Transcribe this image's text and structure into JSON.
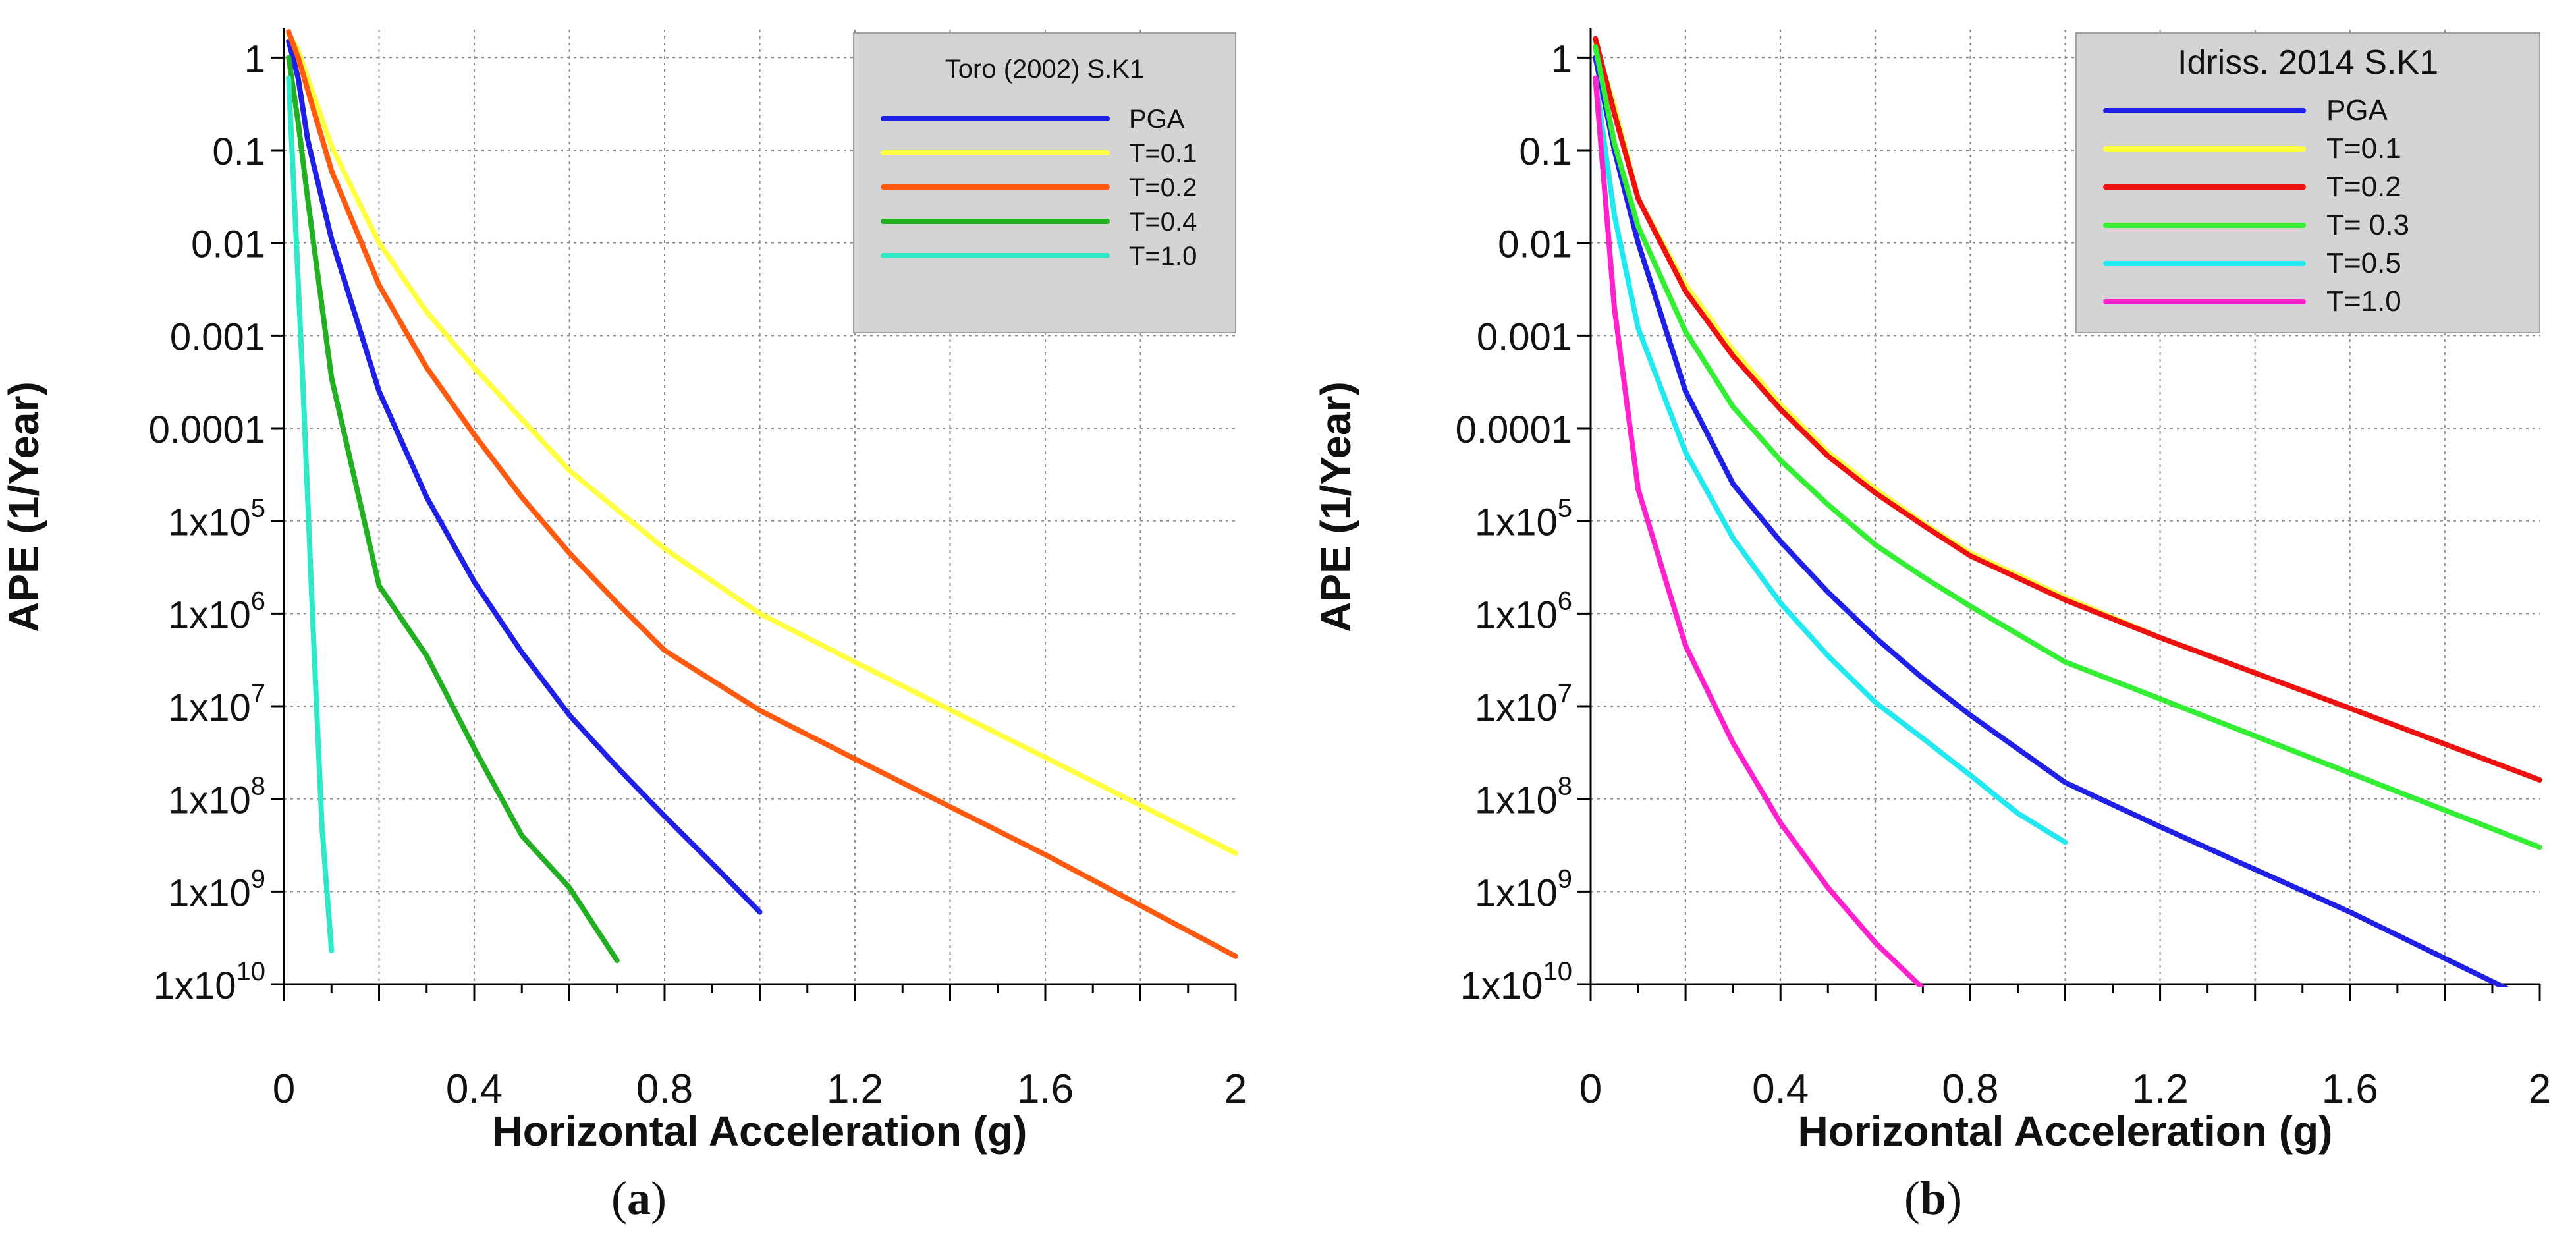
{
  "chart_data": [
    {
      "type": "line",
      "panel_label": "a",
      "xlabel": "Horizontal Acceleration (g)",
      "ylabel": "APE (1/Year)",
      "y_scale": "log",
      "xlim": [
        0,
        2
      ],
      "ylim": [
        1e-10,
        2
      ],
      "x_ticks": [
        0,
        0.4,
        0.8,
        1.2,
        1.6,
        2
      ],
      "x_tick_labels": [
        "0",
        "0.4",
        "0.8",
        "1.2",
        "1.6",
        "2"
      ],
      "y_ticks": [
        1,
        0.1,
        0.01,
        0.001,
        0.0001,
        1e-05,
        1e-06,
        1e-07,
        1e-08,
        1e-09,
        1e-10
      ],
      "y_tick_labels": [
        {
          "base": "1",
          "exp": ""
        },
        {
          "base": "0.1",
          "exp": ""
        },
        {
          "base": "0.01",
          "exp": ""
        },
        {
          "base": "0.001",
          "exp": ""
        },
        {
          "base": "0.0001",
          "exp": ""
        },
        {
          "base": "1x10",
          "exp": "5"
        },
        {
          "base": "1x10",
          "exp": "6"
        },
        {
          "base": "1x10",
          "exp": "7"
        },
        {
          "base": "1x10",
          "exp": "8"
        },
        {
          "base": "1x10",
          "exp": "9"
        },
        {
          "base": "1x10",
          "exp": "10"
        }
      ],
      "grid": true,
      "legend_title": "Toro (2002) S.K1",
      "legend_position": "top-right",
      "series": [
        {
          "name": "PGA",
          "color": "#1f1fe6",
          "x": [
            0.01,
            0.03,
            0.05,
            0.1,
            0.2,
            0.3,
            0.4,
            0.5,
            0.6,
            0.7,
            0.8,
            0.9,
            1.0
          ],
          "y": [
            1.5,
            0.6,
            0.13,
            0.011,
            0.00025,
            1.8e-05,
            2.2e-06,
            3.8e-07,
            8e-08,
            2.2e-08,
            6.5e-09,
            2e-09,
            6e-10
          ]
        },
        {
          "name": "T=0.1",
          "color": "#ffff44",
          "x": [
            0.01,
            0.03,
            0.05,
            0.1,
            0.2,
            0.3,
            0.4,
            0.6,
            0.8,
            1.0,
            1.2,
            1.6,
            2.0
          ],
          "y": [
            1.8,
            1.2,
            0.6,
            0.11,
            0.01,
            0.0018,
            0.00045,
            3.5e-05,
            5e-06,
            1e-06,
            3e-07,
            2.8e-08,
            2.6e-09
          ]
        },
        {
          "name": "T=0.2",
          "color": "#ff5a10",
          "x": [
            0.01,
            0.03,
            0.05,
            0.1,
            0.2,
            0.3,
            0.4,
            0.5,
            0.6,
            0.7,
            0.8,
            1.0,
            1.2,
            1.6,
            2.0
          ],
          "y": [
            1.9,
            1.0,
            0.45,
            0.06,
            0.0035,
            0.00045,
            8.5e-05,
            1.8e-05,
            4.5e-06,
            1.3e-06,
            4e-07,
            9e-08,
            2.7e-08,
            2.5e-09,
            2e-10
          ]
        },
        {
          "name": "T=0.4",
          "color": "#22b022",
          "x": [
            0.01,
            0.03,
            0.05,
            0.1,
            0.2,
            0.3,
            0.4,
            0.5,
            0.6,
            0.7
          ],
          "y": [
            1.0,
            0.2,
            0.03,
            0.00035,
            2e-06,
            3.5e-07,
            3.5e-08,
            4e-09,
            1.1e-09,
            1.8e-10
          ]
        },
        {
          "name": "T=1.0",
          "color": "#2ee8c8",
          "x": [
            0.01,
            0.02,
            0.04,
            0.06,
            0.08,
            0.1
          ],
          "y": [
            0.6,
            0.05,
            0.0003,
            1e-06,
            5e-09,
            2.3e-10
          ]
        }
      ]
    },
    {
      "type": "line",
      "panel_label": "b",
      "xlabel": "Horizontal Acceleration (g)",
      "ylabel": "APE (1/Year)",
      "y_scale": "log",
      "xlim": [
        0,
        2
      ],
      "ylim": [
        1e-10,
        2
      ],
      "x_ticks": [
        0,
        0.4,
        0.8,
        1.2,
        1.6,
        2
      ],
      "x_tick_labels": [
        "0",
        "0.4",
        "0.8",
        "1.2",
        "1.6",
        "2"
      ],
      "y_ticks": [
        1,
        0.1,
        0.01,
        0.001,
        0.0001,
        1e-05,
        1e-06,
        1e-07,
        1e-08,
        1e-09,
        1e-10
      ],
      "y_tick_labels": [
        {
          "base": "1",
          "exp": ""
        },
        {
          "base": "0.1",
          "exp": ""
        },
        {
          "base": "0.01",
          "exp": ""
        },
        {
          "base": "0.001",
          "exp": ""
        },
        {
          "base": "0.0001",
          "exp": ""
        },
        {
          "base": "1x10",
          "exp": "5"
        },
        {
          "base": "1x10",
          "exp": "6"
        },
        {
          "base": "1x10",
          "exp": "7"
        },
        {
          "base": "1x10",
          "exp": "8"
        },
        {
          "base": "1x10",
          "exp": "9"
        },
        {
          "base": "1x10",
          "exp": "10"
        }
      ],
      "grid": true,
      "legend_title": "Idriss. 2014 S.K1",
      "legend_position": "top-right",
      "series": [
        {
          "name": "PGA",
          "color": "#1f1fe6",
          "x": [
            0.01,
            0.05,
            0.1,
            0.2,
            0.3,
            0.4,
            0.5,
            0.6,
            0.7,
            0.8,
            1.0,
            1.2,
            1.6,
            2.0
          ],
          "y": [
            1.0,
            0.1,
            0.01,
            0.00025,
            2.5e-05,
            6e-06,
            1.7e-06,
            5.5e-07,
            2e-07,
            8e-08,
            1.5e-08,
            5e-09,
            6e-10,
            6e-11
          ]
        },
        {
          "name": "T=0.1",
          "color": "#ffff44",
          "x": [
            0.01,
            0.05,
            0.1,
            0.2,
            0.3,
            0.4,
            0.5,
            0.6,
            0.7,
            0.8,
            1.0,
            1.2,
            1.6,
            2.0
          ],
          "y": [
            1.4,
            0.3,
            0.03,
            0.0035,
            0.0007,
            0.00018,
            5.5e-05,
            2.2e-05,
            9.5e-06,
            4.5e-06,
            1.5e-06,
            5.5e-07,
            9.5e-08,
            1.6e-08
          ]
        },
        {
          "name": "T=0.2",
          "color": "#ee1111",
          "x": [
            0.01,
            0.05,
            0.1,
            0.2,
            0.3,
            0.4,
            0.5,
            0.6,
            0.7,
            0.8,
            1.0,
            1.2,
            1.6,
            2.0
          ],
          "y": [
            1.6,
            0.25,
            0.03,
            0.003,
            0.0006,
            0.00016,
            5e-05,
            2e-05,
            9e-06,
            4.2e-06,
            1.4e-06,
            5.5e-07,
            9.5e-08,
            1.6e-08
          ]
        },
        {
          "name": "T= 0.3",
          "color": "#33ee33",
          "x": [
            0.01,
            0.05,
            0.1,
            0.2,
            0.3,
            0.4,
            0.5,
            0.6,
            0.7,
            0.8,
            1.0,
            1.2,
            1.6,
            2.0
          ],
          "y": [
            1.3,
            0.12,
            0.015,
            0.0011,
            0.00017,
            4.5e-05,
            1.5e-05,
            5.5e-06,
            2.5e-06,
            1.2e-06,
            3e-07,
            1.2e-07,
            1.9e-08,
            3e-09
          ]
        },
        {
          "name": "T=0.5",
          "color": "#22e8f0",
          "x": [
            0.01,
            0.05,
            0.1,
            0.2,
            0.3,
            0.4,
            0.5,
            0.6,
            0.7,
            0.8,
            0.9,
            1.0
          ],
          "y": [
            0.6,
            0.02,
            0.0012,
            5.5e-05,
            6.5e-06,
            1.3e-06,
            3.5e-07,
            1.1e-07,
            4.5e-08,
            1.8e-08,
            7e-09,
            3.4e-09
          ]
        },
        {
          "name": "T=1.0",
          "color": "#ff22cc",
          "x": [
            0.01,
            0.05,
            0.1,
            0.2,
            0.3,
            0.4,
            0.5,
            0.6,
            0.7
          ],
          "y": [
            0.6,
            0.002,
            2.2e-05,
            4.5e-07,
            4e-08,
            5.5e-09,
            1.1e-09,
            2.8e-10,
            9e-11
          ]
        }
      ]
    }
  ]
}
